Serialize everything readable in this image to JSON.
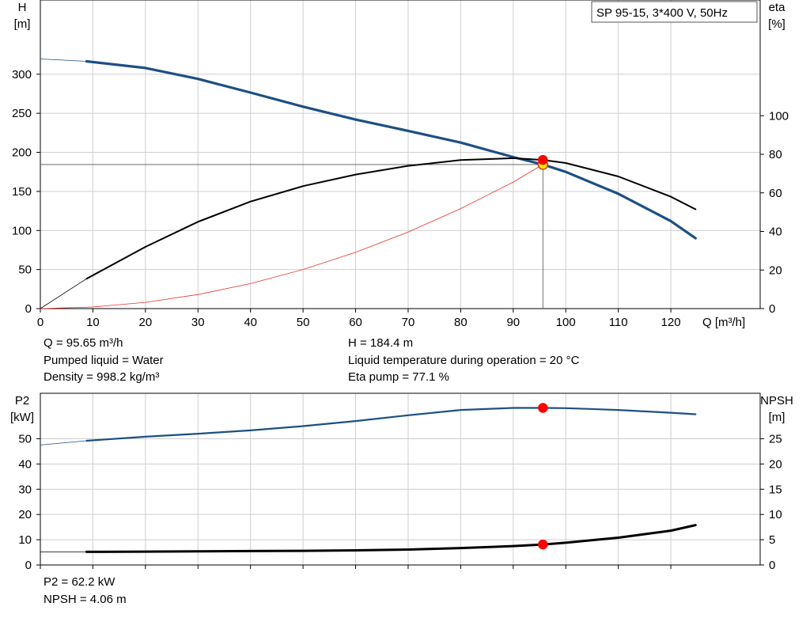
{
  "chart_data": [
    {
      "type": "line",
      "title": "SP 95-15, 3*400 V, 50Hz",
      "xlabel": "Q [m³/h]",
      "ylabel": [
        "H",
        "[m]"
      ],
      "y2label": [
        "eta",
        "[%]"
      ],
      "xlim": [
        0,
        137
      ],
      "ylim": [
        0,
        395
      ],
      "y2lim": [
        0,
        160
      ],
      "x_ticks": [
        "0",
        "10",
        "20",
        "30",
        "40",
        "50",
        "60",
        "70",
        "80",
        "90",
        "100",
        "110",
        "120"
      ],
      "y_ticks": [
        "0",
        "50",
        "100",
        "150",
        "200",
        "250",
        "300"
      ],
      "y2_ticks": [
        "0",
        "20",
        "40",
        "60",
        "80",
        "100"
      ],
      "grid": true,
      "series": [
        {
          "role": "head",
          "axis": "left",
          "color": "#1d4f84",
          "x": [
            8.8,
            20,
            30,
            40,
            50,
            60,
            70,
            80,
            90,
            95.65,
            100,
            110,
            120,
            124.7
          ],
          "y": [
            316.5,
            308,
            294,
            276.5,
            258.5,
            242,
            227.5,
            212.5,
            194,
            184.4,
            175,
            147,
            112,
            90
          ]
        },
        {
          "role": "head-extension",
          "axis": "left",
          "color": "#1d4f84",
          "x": [
            0,
            8.8
          ],
          "y": [
            319.5,
            316.5
          ]
        },
        {
          "role": "efficiency",
          "axis": "right",
          "color": "#000000",
          "x": [
            8.8,
            20,
            30,
            40,
            50,
            60,
            70,
            80,
            90,
            95.65,
            100,
            110,
            120,
            124.7
          ],
          "y": [
            15.5,
            32,
            45,
            55.5,
            63.5,
            69.5,
            74,
            77,
            78,
            77.1,
            75.5,
            68.5,
            58,
            51.5
          ]
        },
        {
          "role": "efficiency-extension",
          "axis": "right",
          "color": "#000000",
          "x": [
            0,
            8.8
          ],
          "y": [
            0,
            15.5
          ]
        },
        {
          "role": "system-curve",
          "axis": "left",
          "color": "#e8312f",
          "x": [
            0,
            10,
            20,
            30,
            40,
            50,
            60,
            70,
            80,
            90,
            95.65
          ],
          "y": [
            0,
            2,
            8,
            18,
            32,
            50,
            72,
            98,
            128,
            162,
            184.4
          ]
        }
      ],
      "points": [
        {
          "role": "duty-head",
          "axis": "left",
          "x": 95.65,
          "y": 184.4,
          "fill": "#ffee00",
          "stroke": "#e8312f"
        },
        {
          "role": "duty-eta",
          "axis": "right",
          "x": 95.65,
          "y": 77.1,
          "fill": "#ff0000",
          "stroke": "#ff0000"
        }
      ],
      "duty_line": {
        "x": 95.65,
        "y": 184.4
      },
      "annotations": [
        "Q = 95.65 m³/h",
        "Pumped liquid = Water",
        "Density = 998.2 kg/m³",
        "H = 184.4 m",
        "Liquid temperature during operation = 20 °C",
        "Eta pump = 77.1 %"
      ]
    },
    {
      "type": "line",
      "ylabel": [
        "P2",
        "[kW]"
      ],
      "y2label": [
        "NPSH",
        "[m]"
      ],
      "xlim": [
        0,
        137
      ],
      "ylim": [
        0,
        68
      ],
      "y2lim": [
        0,
        34
      ],
      "y_ticks": [
        "0",
        "10",
        "20",
        "30",
        "40",
        "50"
      ],
      "y2_ticks": [
        "0",
        "5",
        "10",
        "15",
        "20",
        "25"
      ],
      "grid": true,
      "series": [
        {
          "role": "power",
          "axis": "left",
          "color": "#1d4f84",
          "x": [
            8.8,
            20,
            30,
            40,
            50,
            60,
            70,
            80,
            90,
            95.65,
            100,
            110,
            120,
            124.7
          ],
          "y": [
            49.2,
            50.8,
            52,
            53.3,
            55,
            57,
            59.3,
            61.4,
            62.2,
            62.2,
            62.1,
            61.4,
            60.3,
            59.7
          ]
        },
        {
          "role": "power-extension",
          "axis": "left",
          "color": "#1d4f84",
          "x": [
            0,
            8.8
          ],
          "y": [
            47.5,
            49.2
          ]
        },
        {
          "role": "npsh",
          "axis": "right",
          "color": "#000000",
          "x": [
            8.8,
            20,
            30,
            40,
            50,
            60,
            70,
            80,
            90,
            95.65,
            100,
            110,
            120,
            124.7
          ],
          "y": [
            2.6,
            2.65,
            2.7,
            2.75,
            2.8,
            2.9,
            3.05,
            3.35,
            3.75,
            4.06,
            4.4,
            5.4,
            6.8,
            7.9
          ]
        },
        {
          "role": "npsh-extension",
          "axis": "right",
          "color": "#000000",
          "x": [
            0,
            8.8
          ],
          "y": [
            2.6,
            2.6
          ]
        }
      ],
      "points": [
        {
          "role": "duty-power",
          "axis": "left",
          "x": 95.65,
          "y": 62.2,
          "fill": "#ff0000",
          "stroke": "#ff0000"
        },
        {
          "role": "duty-npsh",
          "axis": "right",
          "x": 95.65,
          "y": 4.06,
          "fill": "#ff0000",
          "stroke": "#ff0000"
        }
      ],
      "annotations": [
        "P2 = 62.2 kW",
        "NPSH = 4.06 m"
      ]
    }
  ]
}
